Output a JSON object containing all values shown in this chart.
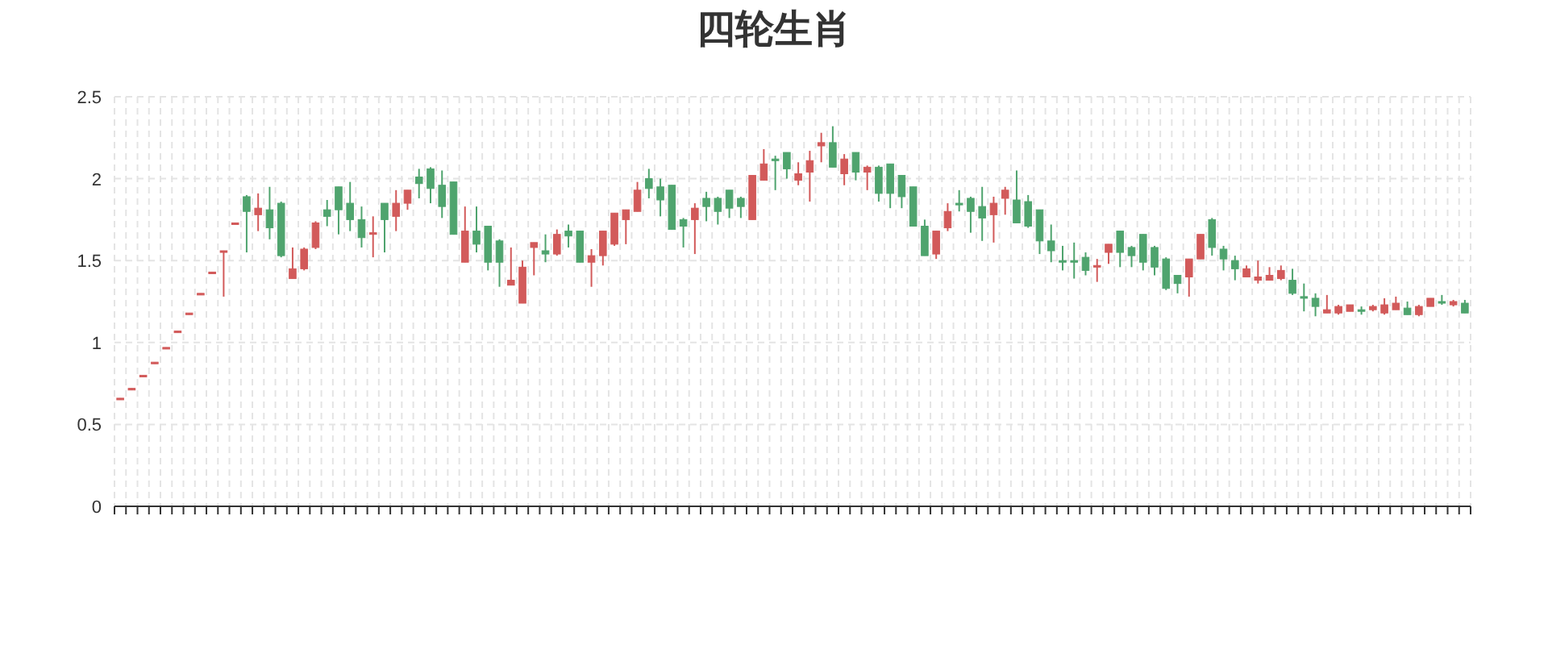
{
  "chart_data": {
    "type": "candlestick",
    "title": "四轮生肖",
    "categories": [
      null,
      null,
      null,
      null,
      null,
      null,
      null,
      null,
      null,
      null,
      null,
      null,
      null,
      null,
      null,
      null,
      null,
      null,
      null,
      null,
      null,
      null,
      null,
      null,
      null,
      null,
      null,
      null,
      null,
      null,
      null,
      null,
      null,
      null,
      null,
      null,
      null,
      null,
      null,
      null,
      null,
      null,
      null,
      null,
      null,
      null,
      null,
      null,
      null,
      null,
      null,
      null,
      null,
      null,
      null,
      null,
      null,
      null,
      null,
      null,
      null,
      null,
      null,
      null,
      null,
      null,
      null,
      null,
      null,
      null,
      null,
      null,
      null,
      null,
      null,
      null,
      null,
      null,
      null,
      null,
      null,
      null,
      null,
      null,
      null,
      null,
      null,
      null,
      null,
      null,
      null,
      null,
      null,
      null,
      null,
      null,
      null,
      null,
      null,
      null,
      null,
      null,
      null,
      null,
      null,
      null,
      null,
      null,
      null,
      null,
      null,
      null,
      null,
      null,
      null,
      null,
      null,
      null
    ],
    "ohlc": [
      [
        0.65,
        0.66,
        0.65,
        0.66
      ],
      [
        0.71,
        0.72,
        0.71,
        0.72
      ],
      [
        0.79,
        0.8,
        0.79,
        0.8
      ],
      [
        0.87,
        0.88,
        0.87,
        0.88
      ],
      [
        0.96,
        0.97,
        0.96,
        0.97
      ],
      [
        1.06,
        1.07,
        1.06,
        1.07
      ],
      [
        1.17,
        1.18,
        1.17,
        1.18
      ],
      [
        1.29,
        1.3,
        1.29,
        1.3
      ],
      [
        1.42,
        1.43,
        1.42,
        1.43
      ],
      [
        1.55,
        1.56,
        1.28,
        1.56
      ],
      [
        1.72,
        1.73,
        1.72,
        1.73
      ],
      [
        1.89,
        1.9,
        1.55,
        1.8
      ],
      [
        1.78,
        1.91,
        1.68,
        1.82
      ],
      [
        1.81,
        1.95,
        1.63,
        1.7
      ],
      [
        1.85,
        1.86,
        1.52,
        1.53
      ],
      [
        1.39,
        1.58,
        1.39,
        1.45
      ],
      [
        1.45,
        1.58,
        1.44,
        1.57
      ],
      [
        1.58,
        1.74,
        1.57,
        1.73
      ],
      [
        1.81,
        1.87,
        1.71,
        1.77
      ],
      [
        1.95,
        1.95,
        1.66,
        1.81
      ],
      [
        1.85,
        1.98,
        1.68,
        1.75
      ],
      [
        1.75,
        1.83,
        1.58,
        1.64
      ],
      [
        1.66,
        1.77,
        1.52,
        1.67
      ],
      [
        1.85,
        1.85,
        1.55,
        1.75
      ],
      [
        1.77,
        1.93,
        1.68,
        1.85
      ],
      [
        1.85,
        1.93,
        1.81,
        1.93
      ],
      [
        2.01,
        2.06,
        1.88,
        1.97
      ],
      [
        2.06,
        2.07,
        1.85,
        1.94
      ],
      [
        1.96,
        2.05,
        1.76,
        1.83
      ],
      [
        1.98,
        1.98,
        1.66,
        1.66
      ],
      [
        1.49,
        1.83,
        1.49,
        1.68
      ],
      [
        1.68,
        1.83,
        1.55,
        1.6
      ],
      [
        1.71,
        1.71,
        1.44,
        1.49
      ],
      [
        1.62,
        1.63,
        1.34,
        1.49
      ],
      [
        1.35,
        1.58,
        1.35,
        1.38
      ],
      [
        1.24,
        1.5,
        1.24,
        1.46
      ],
      [
        1.58,
        1.61,
        1.41,
        1.61
      ],
      [
        1.56,
        1.66,
        1.49,
        1.54
      ],
      [
        1.54,
        1.69,
        1.53,
        1.66
      ],
      [
        1.68,
        1.72,
        1.58,
        1.65
      ],
      [
        1.68,
        1.68,
        1.49,
        1.49
      ],
      [
        1.49,
        1.57,
        1.34,
        1.53
      ],
      [
        1.53,
        1.68,
        1.47,
        1.68
      ],
      [
        1.6,
        1.79,
        1.59,
        1.79
      ],
      [
        1.75,
        1.81,
        1.6,
        1.81
      ],
      [
        1.8,
        1.98,
        1.8,
        1.93
      ],
      [
        2.0,
        2.06,
        1.88,
        1.94
      ],
      [
        1.95,
        2.0,
        1.77,
        1.87
      ],
      [
        1.96,
        1.96,
        1.69,
        1.69
      ],
      [
        1.75,
        1.76,
        1.58,
        1.71
      ],
      [
        1.75,
        1.85,
        1.54,
        1.82
      ],
      [
        1.88,
        1.92,
        1.74,
        1.83
      ],
      [
        1.88,
        1.89,
        1.72,
        1.8
      ],
      [
        1.93,
        1.93,
        1.76,
        1.82
      ],
      [
        1.88,
        1.89,
        1.76,
        1.83
      ],
      [
        1.75,
        2.02,
        1.75,
        2.02
      ],
      [
        1.99,
        2.18,
        1.99,
        2.09
      ],
      [
        2.12,
        2.14,
        1.93,
        2.11
      ],
      [
        2.16,
        2.16,
        2.0,
        2.06
      ],
      [
        1.99,
        2.1,
        1.96,
        2.03
      ],
      [
        2.04,
        2.17,
        1.86,
        2.11
      ],
      [
        2.2,
        2.28,
        2.1,
        2.22
      ],
      [
        2.22,
        2.32,
        2.07,
        2.07
      ],
      [
        2.03,
        2.15,
        1.96,
        2.12
      ],
      [
        2.16,
        2.16,
        1.99,
        2.04
      ],
      [
        2.04,
        2.08,
        1.93,
        2.07
      ],
      [
        2.07,
        2.08,
        1.86,
        1.91
      ],
      [
        2.09,
        2.09,
        1.82,
        1.91
      ],
      [
        2.02,
        2.02,
        1.82,
        1.89
      ],
      [
        1.95,
        1.95,
        1.71,
        1.71
      ],
      [
        1.71,
        1.75,
        1.53,
        1.53
      ],
      [
        1.54,
        1.68,
        1.51,
        1.68
      ],
      [
        1.7,
        1.85,
        1.68,
        1.8
      ],
      [
        1.85,
        1.93,
        1.8,
        1.84
      ],
      [
        1.88,
        1.89,
        1.67,
        1.8
      ],
      [
        1.83,
        1.95,
        1.62,
        1.76
      ],
      [
        1.78,
        1.89,
        1.61,
        1.85
      ],
      [
        1.88,
        1.95,
        1.78,
        1.93
      ],
      [
        1.87,
        2.05,
        1.73,
        1.73
      ],
      [
        1.86,
        1.9,
        1.7,
        1.71
      ],
      [
        1.81,
        1.81,
        1.54,
        1.62
      ],
      [
        1.62,
        1.72,
        1.49,
        1.56
      ],
      [
        1.5,
        1.59,
        1.44,
        1.49
      ],
      [
        1.5,
        1.61,
        1.39,
        1.49
      ],
      [
        1.52,
        1.55,
        1.41,
        1.44
      ],
      [
        1.46,
        1.51,
        1.37,
        1.47
      ],
      [
        1.55,
        1.6,
        1.48,
        1.6
      ],
      [
        1.68,
        1.68,
        1.46,
        1.55
      ],
      [
        1.58,
        1.59,
        1.46,
        1.53
      ],
      [
        1.66,
        1.66,
        1.44,
        1.49
      ],
      [
        1.58,
        1.59,
        1.41,
        1.46
      ],
      [
        1.51,
        1.52,
        1.32,
        1.33
      ],
      [
        1.41,
        1.41,
        1.3,
        1.36
      ],
      [
        1.4,
        1.51,
        1.28,
        1.51
      ],
      [
        1.51,
        1.66,
        1.51,
        1.66
      ],
      [
        1.75,
        1.76,
        1.53,
        1.58
      ],
      [
        1.57,
        1.59,
        1.44,
        1.51
      ],
      [
        1.5,
        1.53,
        1.38,
        1.45
      ],
      [
        1.4,
        1.47,
        1.4,
        1.45
      ],
      [
        1.38,
        1.5,
        1.36,
        1.4
      ],
      [
        1.38,
        1.46,
        1.38,
        1.41
      ],
      [
        1.39,
        1.47,
        1.38,
        1.44
      ],
      [
        1.38,
        1.45,
        1.29,
        1.3
      ],
      [
        1.28,
        1.36,
        1.19,
        1.27
      ],
      [
        1.27,
        1.3,
        1.16,
        1.22
      ],
      [
        1.18,
        1.29,
        1.18,
        1.2
      ],
      [
        1.18,
        1.23,
        1.17,
        1.22
      ],
      [
        1.19,
        1.23,
        1.19,
        1.23
      ],
      [
        1.2,
        1.22,
        1.17,
        1.19
      ],
      [
        1.2,
        1.23,
        1.19,
        1.22
      ],
      [
        1.18,
        1.27,
        1.17,
        1.23
      ],
      [
        1.2,
        1.28,
        1.2,
        1.24
      ],
      [
        1.21,
        1.25,
        1.17,
        1.17
      ],
      [
        1.17,
        1.23,
        1.16,
        1.22
      ],
      [
        1.22,
        1.27,
        1.22,
        1.27
      ],
      [
        1.25,
        1.29,
        1.23,
        1.24
      ],
      [
        1.23,
        1.26,
        1.22,
        1.25
      ],
      [
        1.24,
        1.26,
        1.18,
        1.18
      ]
    ],
    "colors": [
      "#d25a5a",
      "#d25a5a",
      "#d25a5a",
      "#d25a5a",
      "#d25a5a",
      "#d25a5a",
      "#d25a5a",
      "#d25a5a",
      "#d25a5a",
      "#d25a5a",
      "#d25a5a",
      "#4fa46e",
      "#d25a5a",
      "#4fa46e",
      "#4fa46e",
      "#d25a5a",
      "#d25a5a",
      "#d25a5a",
      "#4fa46e",
      "#4fa46e",
      "#4fa46e",
      "#4fa46e",
      "#d25a5a",
      "#4fa46e",
      "#d25a5a",
      "#d25a5a",
      "#4fa46e",
      "#4fa46e",
      "#4fa46e",
      "#4fa46e",
      "#d25a5a",
      "#4fa46e",
      "#4fa46e",
      "#4fa46e",
      "#d25a5a",
      "#d25a5a",
      "#d25a5a",
      "#4fa46e",
      "#d25a5a",
      "#4fa46e",
      "#4fa46e",
      "#d25a5a",
      "#d25a5a",
      "#d25a5a",
      "#d25a5a",
      "#d25a5a",
      "#4fa46e",
      "#4fa46e",
      "#4fa46e",
      "#4fa46e",
      "#d25a5a",
      "#4fa46e",
      "#4fa46e",
      "#4fa46e",
      "#4fa46e",
      "#d25a5a",
      "#d25a5a",
      "#4fa46e",
      "#4fa46e",
      "#d25a5a",
      "#d25a5a",
      "#d25a5a",
      "#4fa46e",
      "#d25a5a",
      "#4fa46e",
      "#d25a5a",
      "#4fa46e",
      "#4fa46e",
      "#4fa46e",
      "#4fa46e",
      "#4fa46e",
      "#d25a5a",
      "#d25a5a",
      "#4fa46e",
      "#4fa46e",
      "#4fa46e",
      "#d25a5a",
      "#d25a5a",
      "#4fa46e",
      "#4fa46e",
      "#4fa46e",
      "#4fa46e",
      "#4fa46e",
      "#4fa46e",
      "#4fa46e",
      "#d25a5a",
      "#d25a5a",
      "#4fa46e",
      "#4fa46e",
      "#4fa46e",
      "#4fa46e",
      "#4fa46e",
      "#4fa46e",
      "#d25a5a",
      "#d25a5a",
      "#4fa46e",
      "#4fa46e",
      "#4fa46e",
      "#d25a5a",
      "#d25a5a",
      "#d25a5a",
      "#d25a5a",
      "#4fa46e",
      "#4fa46e",
      "#4fa46e",
      "#d25a5a",
      "#d25a5a",
      "#d25a5a",
      "#4fa46e",
      "#d25a5a",
      "#d25a5a",
      "#d25a5a",
      "#4fa46e",
      "#d25a5a",
      "#d25a5a",
      "#4fa46e",
      "#d25a5a",
      "#4fa46e"
    ],
    "ylim": [
      0,
      2.5
    ],
    "yticks": [
      0,
      0.5,
      1,
      1.5,
      2,
      2.5
    ],
    "grid": true,
    "tick_labels": "y"
  }
}
